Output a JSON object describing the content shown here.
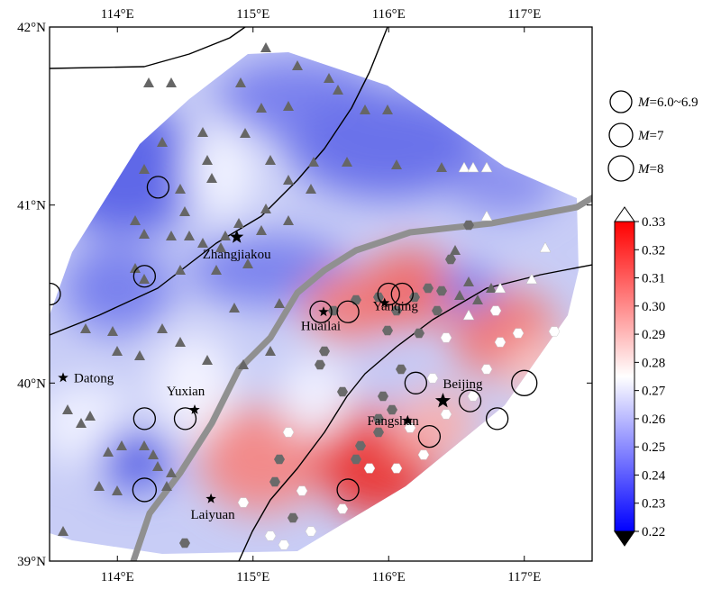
{
  "map": {
    "lon_range": [
      113.5,
      117.5
    ],
    "lat_range": [
      39.0,
      42.0
    ],
    "x_ticks": [
      {
        "lon": 114,
        "label": "114°E"
      },
      {
        "lon": 115,
        "label": "115°E"
      },
      {
        "lon": 116,
        "label": "116°E"
      },
      {
        "lon": 117,
        "label": "117°E"
      }
    ],
    "y_ticks": [
      {
        "lat": 42,
        "label": "42°N"
      },
      {
        "lat": 41,
        "label": "41°N"
      },
      {
        "lat": 40,
        "label": "40°N"
      },
      {
        "lat": 39,
        "label": "39°N"
      }
    ]
  },
  "cities": [
    {
      "name": "Zhangjiakou",
      "lon": 114.88,
      "lat": 40.82
    },
    {
      "name": "Datong",
      "lon": 113.6,
      "lat": 40.03
    },
    {
      "name": "Yuxian",
      "lon": 114.57,
      "lat": 39.85
    },
    {
      "name": "Huailai",
      "lon": 115.52,
      "lat": 40.4
    },
    {
      "name": "Yanqing",
      "lon": 115.97,
      "lat": 40.45
    },
    {
      "name": "Beijing",
      "lon": 116.4,
      "lat": 39.9
    },
    {
      "name": "Fangshan",
      "lon": 116.14,
      "lat": 39.79
    },
    {
      "name": "Laiyuan",
      "lon": 114.69,
      "lat": 39.35
    }
  ],
  "earthquakes": [
    {
      "lon": 114.3,
      "lat": 41.1,
      "mag": "6"
    },
    {
      "lon": 113.5,
      "lat": 40.5,
      "mag": "6"
    },
    {
      "lon": 114.2,
      "lat": 40.6,
      "mag": "6"
    },
    {
      "lon": 115.5,
      "lat": 40.4,
      "mag": "6"
    },
    {
      "lon": 115.7,
      "lat": 40.4,
      "mag": "6"
    },
    {
      "lon": 116.0,
      "lat": 40.5,
      "mag": "6"
    },
    {
      "lon": 116.1,
      "lat": 40.5,
      "mag": "6"
    },
    {
      "lon": 114.2,
      "lat": 39.8,
      "mag": "6"
    },
    {
      "lon": 114.5,
      "lat": 39.8,
      "mag": "6"
    },
    {
      "lon": 114.2,
      "lat": 39.4,
      "mag": "7"
    },
    {
      "lon": 115.7,
      "lat": 39.4,
      "mag": "6"
    },
    {
      "lon": 116.2,
      "lat": 40.0,
      "mag": "6"
    },
    {
      "lon": 116.3,
      "lat": 39.7,
      "mag": "6"
    },
    {
      "lon": 116.6,
      "lat": 39.9,
      "mag": "6"
    },
    {
      "lon": 116.8,
      "lat": 39.8,
      "mag": "6"
    },
    {
      "lon": 117.0,
      "lat": 40.0,
      "mag": "8"
    }
  ],
  "legend": {
    "items": [
      {
        "label": "M=6.0~6.9",
        "mag": "6"
      },
      {
        "label": "M=7",
        "mag": "7"
      },
      {
        "label": "M=8",
        "mag": "8"
      }
    ]
  },
  "colorbar": {
    "min": 0.22,
    "max": 0.33,
    "ticks": [
      "0.33",
      "0.32",
      "0.31",
      "0.30",
      "0.29",
      "0.28",
      "0.27",
      "0.26",
      "0.25",
      "0.24",
      "0.23",
      "0.22"
    ],
    "colors": {
      "low": "#0000ff",
      "mid": "#ffffff",
      "high": "#ff0000"
    }
  },
  "colors": {
    "station_triangle": "#666666",
    "station_hexagon": "#6a6a6a",
    "fault_gray": "#909090",
    "fault_black": "#000000"
  }
}
